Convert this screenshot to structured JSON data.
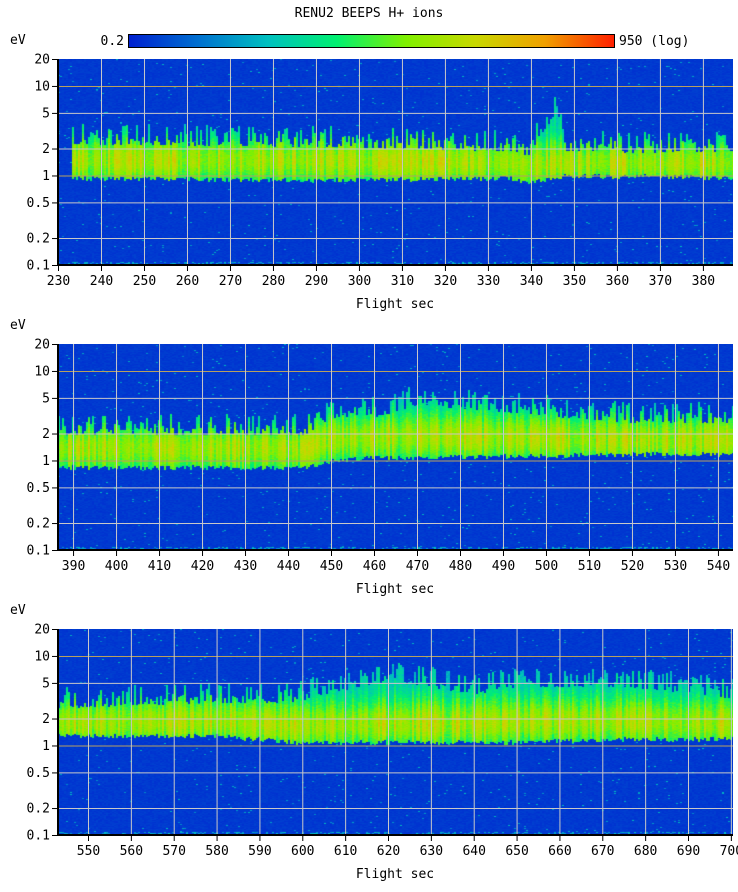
{
  "title": "RENU2 BEEPS H+ ions",
  "colorbar": {
    "min_label": "0.2",
    "max_label": "950 (log)",
    "min": 0.2,
    "max": 950,
    "scale": "log",
    "stops": [
      "#0020d0",
      "#0070d0",
      "#00c0c0",
      "#00f070",
      "#80f000",
      "#c8d800",
      "#f0a000",
      "#ff2000"
    ]
  },
  "chart_data": [
    {
      "type": "heatmap",
      "title": "RENU2 BEEPS H+ ions",
      "ylabel": "eV",
      "xlabel": "Flight sec",
      "xlim": [
        230,
        387
      ],
      "ylim": [
        0.1,
        20
      ],
      "yscale": "log",
      "yticks": [
        "20",
        "10",
        "5",
        "2",
        "1",
        "0.5",
        "0.2",
        "0.1"
      ],
      "ytick_values": [
        20,
        10,
        5,
        2,
        1,
        0.5,
        0.2,
        0.1
      ],
      "xticks": [
        "230",
        "240",
        "250",
        "260",
        "270",
        "280",
        "290",
        "300",
        "310",
        "320",
        "330",
        "340",
        "350",
        "360",
        "370",
        "380"
      ],
      "band": [
        [
          233,
          0.95,
          1.5,
          3.0
        ],
        [
          290,
          0.9,
          1.5,
          2.8
        ],
        [
          335,
          0.95,
          1.4,
          2.5
        ],
        [
          340,
          0.85,
          1.3,
          2.2
        ],
        [
          346,
          1.0,
          1.4,
          6.5
        ],
        [
          348,
          1.0,
          1.4,
          2.5
        ],
        [
          370,
          1.0,
          1.4,
          2.4
        ],
        [
          387,
          0.95,
          1.4,
          2.5
        ]
      ]
    },
    {
      "type": "heatmap",
      "ylabel": "eV",
      "xlabel": "Flight sec",
      "xlim": [
        386.5,
        543.5
      ],
      "ylim": [
        0.1,
        20
      ],
      "yscale": "log",
      "yticks": [
        "20",
        "10",
        "5",
        "2",
        "1",
        "0.5",
        "0.2",
        "0.1"
      ],
      "ytick_values": [
        20,
        10,
        5,
        2,
        1,
        0.5,
        0.2,
        0.1
      ],
      "xticks": [
        "390",
        "400",
        "410",
        "420",
        "430",
        "440",
        "450",
        "460",
        "470",
        "480",
        "490",
        "500",
        "510",
        "520",
        "530",
        "540"
      ],
      "band": [
        [
          386.5,
          0.85,
          1.4,
          2.6
        ],
        [
          444,
          0.85,
          1.4,
          2.6
        ],
        [
          450,
          1.0,
          1.8,
          4.0
        ],
        [
          460,
          1.1,
          1.8,
          4.0
        ],
        [
          470,
          1.1,
          1.9,
          5.5
        ],
        [
          500,
          1.15,
          1.8,
          4.2
        ],
        [
          520,
          1.2,
          1.7,
          3.5
        ],
        [
          543.5,
          1.2,
          1.7,
          3.5
        ]
      ]
    },
    {
      "type": "heatmap",
      "ylabel": "eV",
      "xlabel": "Flight sec",
      "xlim": [
        543,
        700.5
      ],
      "ylim": [
        0.1,
        20
      ],
      "yscale": "log",
      "yticks": [
        "20",
        "10",
        "5",
        "2",
        "1",
        "0.5",
        "0.2",
        "0.1"
      ],
      "ytick_values": [
        20,
        10,
        5,
        2,
        1,
        0.5,
        0.2,
        0.1
      ],
      "xticks": [
        "550",
        "560",
        "570",
        "580",
        "590",
        "600",
        "610",
        "620",
        "630",
        "640",
        "650",
        "660",
        "670",
        "680",
        "690",
        "700"
      ],
      "band": [
        [
          543,
          1.3,
          1.8,
          3.5
        ],
        [
          580,
          1.3,
          1.9,
          4.0
        ],
        [
          598,
          1.1,
          1.7,
          4.0
        ],
        [
          620,
          1.1,
          1.8,
          7.0
        ],
        [
          640,
          1.1,
          1.8,
          5.0
        ],
        [
          650,
          1.1,
          1.9,
          6.0
        ],
        [
          675,
          1.2,
          1.9,
          6.0
        ],
        [
          700.5,
          1.2,
          1.8,
          4.5
        ]
      ]
    }
  ]
}
